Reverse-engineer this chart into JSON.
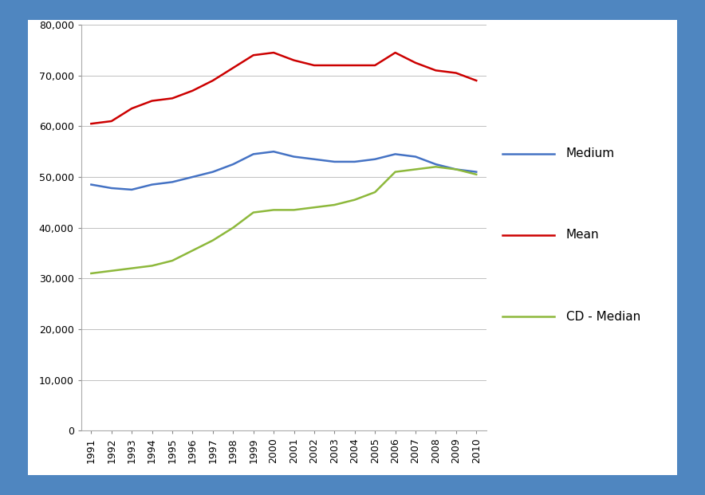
{
  "years": [
    1991,
    1992,
    1993,
    1994,
    1995,
    1996,
    1997,
    1998,
    1999,
    2000,
    2001,
    2002,
    2003,
    2004,
    2005,
    2006,
    2007,
    2008,
    2009,
    2010
  ],
  "medium": [
    48500,
    47800,
    47500,
    48500,
    49000,
    50000,
    51000,
    52500,
    54500,
    55000,
    54000,
    53500,
    53000,
    53000,
    53500,
    54500,
    54000,
    52500,
    51500,
    51000
  ],
  "mean": [
    60500,
    61000,
    63500,
    65000,
    65500,
    67000,
    69000,
    71500,
    74000,
    74500,
    73000,
    72000,
    72000,
    72000,
    72000,
    74500,
    72500,
    71000,
    70500,
    69000
  ],
  "cd_median": [
    31000,
    31500,
    32000,
    32500,
    33500,
    35500,
    37500,
    40000,
    43000,
    43500,
    43500,
    44000,
    44500,
    45500,
    47000,
    51000,
    51500,
    52000,
    51500,
    50500
  ],
  "medium_color": "#4472C4",
  "mean_color": "#CC0000",
  "cd_median_color": "#8DB83B",
  "background_outer": "#4F86C0",
  "background_inner": "#FFFFFF",
  "ylim": [
    0,
    80000
  ],
  "yticks": [
    0,
    10000,
    20000,
    30000,
    40000,
    50000,
    60000,
    70000,
    80000
  ],
  "legend_labels": [
    "Medium",
    "Mean",
    "CD - Median"
  ],
  "grid_color": "#C0C0C0",
  "linewidth": 1.8,
  "tick_fontsize": 9,
  "legend_fontsize": 11
}
